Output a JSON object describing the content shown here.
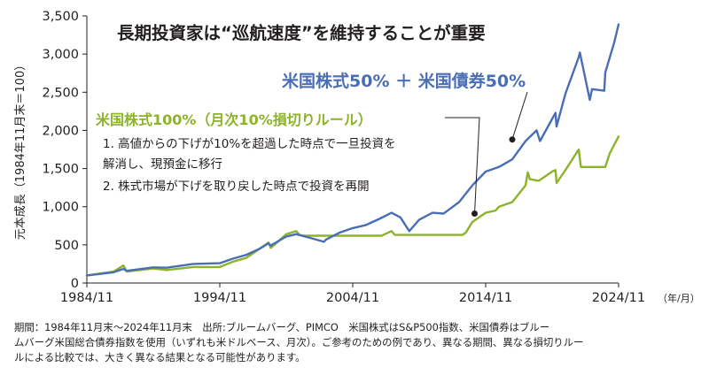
{
  "chart_data": {
    "type": "line",
    "title": "長期投資家は“巡航速度”を維持することが重要",
    "ylabel": "元本成長（1984年11月末＝100）",
    "x_unit_label": "（年/月）",
    "ylim": [
      0,
      3500
    ],
    "xlim": [
      "1984-11",
      "2024-11"
    ],
    "x_ticks": [
      "1984/11",
      "1994/11",
      "2004/11",
      "2014/11",
      "2024/11"
    ],
    "y_ticks": [
      "0",
      "500",
      "1,000",
      "1,500",
      "2,000",
      "2,500",
      "3,000",
      "3,500"
    ],
    "grid": false,
    "series": [
      {
        "name": "米国株式50% ＋ 米国債券50%",
        "color": "#4a6eb4",
        "points": [
          [
            "1984-11",
            100
          ],
          [
            "1986-11",
            140
          ],
          [
            "1987-08",
            185
          ],
          [
            "1987-11",
            160
          ],
          [
            "1989-11",
            205
          ],
          [
            "1990-11",
            200
          ],
          [
            "1992-11",
            250
          ],
          [
            "1994-11",
            260
          ],
          [
            "1995-11",
            320
          ],
          [
            "1996-11",
            370
          ],
          [
            "1997-11",
            450
          ],
          [
            "1998-07",
            520
          ],
          [
            "1998-09",
            490
          ],
          [
            "1999-11",
            610
          ],
          [
            "2000-08",
            640
          ],
          [
            "2001-09",
            590
          ],
          [
            "2002-09",
            540
          ],
          [
            "2002-11",
            570
          ],
          [
            "2003-11",
            660
          ],
          [
            "2004-11",
            720
          ],
          [
            "2005-11",
            760
          ],
          [
            "2006-11",
            840
          ],
          [
            "2007-10",
            920
          ],
          [
            "2008-06",
            860
          ],
          [
            "2009-02",
            680
          ],
          [
            "2009-11",
            830
          ],
          [
            "2010-11",
            920
          ],
          [
            "2011-09",
            910
          ],
          [
            "2012-11",
            1060
          ],
          [
            "2013-11",
            1280
          ],
          [
            "2014-11",
            1460
          ],
          [
            "2015-11",
            1520
          ],
          [
            "2016-11",
            1620
          ],
          [
            "2017-11",
            1860
          ],
          [
            "2018-09",
            2000
          ],
          [
            "2018-12",
            1860
          ],
          [
            "2019-11",
            2150
          ],
          [
            "2020-02",
            2230
          ],
          [
            "2020-03",
            2050
          ],
          [
            "2020-11",
            2480
          ],
          [
            "2021-11",
            2960
          ],
          [
            "2021-12",
            3020
          ],
          [
            "2022-09",
            2400
          ],
          [
            "2022-11",
            2540
          ],
          [
            "2023-10",
            2520
          ],
          [
            "2023-11",
            2760
          ],
          [
            "2024-07",
            3150
          ],
          [
            "2024-11",
            3390
          ]
        ]
      },
      {
        "name": "米国株式100%（月次10%損切りルール）",
        "color": "#8db32b",
        "points": [
          [
            "1984-11",
            100
          ],
          [
            "1986-11",
            150
          ],
          [
            "1987-08",
            230
          ],
          [
            "1987-11",
            150
          ],
          [
            "1989-11",
            190
          ],
          [
            "1990-11",
            170
          ],
          [
            "1992-11",
            210
          ],
          [
            "1994-11",
            210
          ],
          [
            "1995-11",
            280
          ],
          [
            "1996-11",
            330
          ],
          [
            "1997-11",
            450
          ],
          [
            "1998-07",
            530
          ],
          [
            "1998-09",
            460
          ],
          [
            "1999-11",
            640
          ],
          [
            "2000-08",
            680
          ],
          [
            "2000-11",
            630
          ],
          [
            "2001-03",
            620
          ],
          [
            "2007-01",
            620
          ],
          [
            "2007-10",
            680
          ],
          [
            "2008-01",
            630
          ],
          [
            "2013-02",
            630
          ],
          [
            "2013-05",
            660
          ],
          [
            "2013-11",
            800
          ],
          [
            "2014-11",
            920
          ],
          [
            "2015-08",
            950
          ],
          [
            "2015-11",
            1000
          ],
          [
            "2016-11",
            1060
          ],
          [
            "2017-11",
            1280
          ],
          [
            "2018-01",
            1450
          ],
          [
            "2018-03",
            1360
          ],
          [
            "2018-11",
            1340
          ],
          [
            "2019-11",
            1460
          ],
          [
            "2020-02",
            1480
          ],
          [
            "2020-03",
            1310
          ],
          [
            "2020-11",
            1480
          ],
          [
            "2021-11",
            1750
          ],
          [
            "2022-01",
            1520
          ],
          [
            "2023-11",
            1520
          ],
          [
            "2024-03",
            1700
          ],
          [
            "2024-11",
            1920
          ]
        ]
      }
    ],
    "annotations": [
      {
        "text": "1.  高値からの下げが10%を超過した時点で一旦投資を",
        "series": 1
      },
      {
        "text": "     解消し、現預金に移行",
        "series": 1
      },
      {
        "text": "2.  株式市場が下げを取り戻した時点で投資を再開",
        "series": 1
      }
    ],
    "markers": [
      {
        "series": 0,
        "x": "2016-11",
        "y": 1880
      },
      {
        "series": 1,
        "x": "2014-01",
        "y": 910
      }
    ]
  },
  "footnote": {
    "line1": "期間：1984年11月末～2024年11月末　出所:ブルームバーグ、PIMCO　米国株式はS&P500指数、米国債券はブルー",
    "line2": "ムバーグ米国総合債券指数を使用（いずれも米ドルベース、月次）。ご参考のための例であり、異なる期間、異なる損切りルー",
    "line3": "ルによる比較では、大きく異なる結果となる可能性があります。"
  }
}
